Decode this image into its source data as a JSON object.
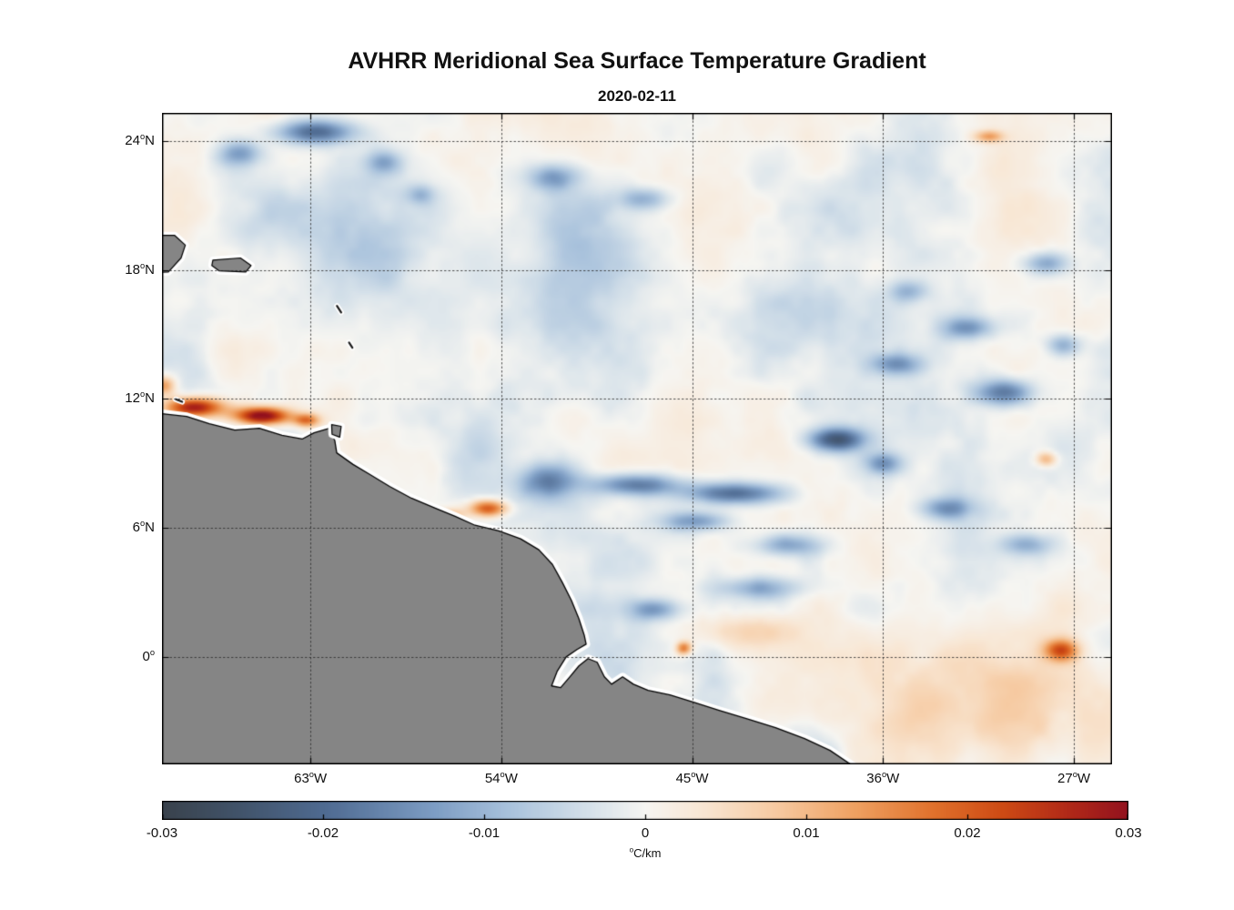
{
  "chart_data": {
    "type": "heatmap",
    "title": "AVHRR Meridional Sea Surface Temperature Gradient",
    "subtitle": "2020-02-11",
    "x_axis": {
      "lon_range": [
        -70.0,
        -25.2
      ],
      "ticks": [
        {
          "value": -63,
          "label": "63°W"
        },
        {
          "value": -54,
          "label": "54°W"
        },
        {
          "value": -45,
          "label": "45°W"
        },
        {
          "value": -36,
          "label": "36°W"
        },
        {
          "value": -27,
          "label": "27°W"
        }
      ]
    },
    "y_axis": {
      "lat_range": [
        -5.0,
        25.3
      ],
      "ticks": [
        {
          "value": 24,
          "label": "24°N"
        },
        {
          "value": 18,
          "label": "18°N"
        },
        {
          "value": 12,
          "label": "12°N"
        },
        {
          "value": 6,
          "label": "6°N"
        },
        {
          "value": 0,
          "label": "0°"
        }
      ]
    },
    "colorbar": {
      "min": -0.03,
      "max": 0.03,
      "label": "°C/km",
      "ticks": [
        {
          "value": -0.03,
          "label": "-0.03"
        },
        {
          "value": -0.02,
          "label": "-0.02"
        },
        {
          "value": -0.01,
          "label": "-0.01"
        },
        {
          "value": 0,
          "label": "0"
        },
        {
          "value": 0.01,
          "label": "0.01"
        },
        {
          "value": 0.02,
          "label": "0.02"
        },
        {
          "value": 0.03,
          "label": "0.03"
        }
      ]
    },
    "colormap": [
      [
        0.0,
        "#39424c"
      ],
      [
        0.08,
        "#41536a"
      ],
      [
        0.17,
        "#4f6b92"
      ],
      [
        0.28,
        "#7c9cc3"
      ],
      [
        0.36,
        "#a9c2dc"
      ],
      [
        0.44,
        "#d4e0e9"
      ],
      [
        0.5,
        "#f6f5f1"
      ],
      [
        0.56,
        "#f8e6d3"
      ],
      [
        0.64,
        "#f6c89e"
      ],
      [
        0.72,
        "#ee9f5f"
      ],
      [
        0.8,
        "#e0702b"
      ],
      [
        0.87,
        "#cd4a14"
      ],
      [
        0.94,
        "#b02818"
      ],
      [
        1.0,
        "#93121e"
      ]
    ],
    "grid": {
      "color": "#2e2e2e",
      "style": "dotted"
    },
    "field": {
      "seed": 7,
      "noise_amplitude": 0.0055,
      "negative_boost": 1.4,
      "octaves": [
        [
          5.0,
          1.0
        ],
        [
          2.3,
          0.55
        ],
        [
          1.1,
          0.3
        ],
        [
          0.55,
          0.15
        ]
      ],
      "features": [
        [
          -68.5,
          11.6,
          1.5,
          0.45,
          0.03
        ],
        [
          -65.3,
          11.2,
          1.3,
          0.4,
          0.034
        ],
        [
          -63.2,
          11.0,
          0.6,
          0.3,
          0.018
        ],
        [
          -69.9,
          12.6,
          0.55,
          0.45,
          0.016
        ],
        [
          -54.6,
          6.9,
          0.9,
          0.38,
          0.022
        ],
        [
          -56.4,
          6.6,
          0.7,
          0.3,
          0.01
        ],
        [
          -27.6,
          0.3,
          0.8,
          0.5,
          0.02
        ],
        [
          -45.4,
          0.4,
          0.35,
          0.3,
          0.018
        ],
        [
          -31.0,
          24.2,
          0.7,
          0.28,
          0.013
        ],
        [
          -28.3,
          9.2,
          0.5,
          0.35,
          0.013
        ],
        [
          -42.5,
          1.2,
          2.5,
          0.8,
          0.007
        ],
        [
          -30.0,
          -2.5,
          7.0,
          3.0,
          0.006
        ],
        [
          -62.8,
          24.4,
          1.8,
          0.55,
          -0.02
        ],
        [
          -66.3,
          23.4,
          1.0,
          0.6,
          -0.013
        ],
        [
          -59.5,
          23.0,
          0.8,
          0.5,
          -0.009
        ],
        [
          -51.5,
          22.3,
          1.2,
          0.6,
          -0.012
        ],
        [
          -47.3,
          21.3,
          1.2,
          0.5,
          -0.01
        ],
        [
          -51.8,
          8.2,
          1.3,
          0.8,
          -0.016
        ],
        [
          -47.6,
          8.0,
          2.0,
          0.5,
          -0.018
        ],
        [
          -43.0,
          7.6,
          2.2,
          0.5,
          -0.02
        ],
        [
          -38.2,
          10.1,
          1.3,
          0.55,
          -0.024
        ],
        [
          -36.0,
          9.0,
          0.8,
          0.5,
          -0.013
        ],
        [
          -44.8,
          6.3,
          1.5,
          0.45,
          -0.013
        ],
        [
          -40.5,
          5.2,
          1.5,
          0.5,
          -0.012
        ],
        [
          -46.8,
          2.2,
          1.2,
          0.5,
          -0.013
        ],
        [
          -41.8,
          3.2,
          1.8,
          0.5,
          -0.011
        ],
        [
          -30.3,
          12.3,
          1.3,
          0.6,
          -0.018
        ],
        [
          -32.0,
          15.3,
          1.2,
          0.5,
          -0.013
        ],
        [
          -28.3,
          18.3,
          1.0,
          0.5,
          -0.012
        ],
        [
          -35.3,
          13.6,
          1.2,
          0.5,
          -0.013
        ],
        [
          -33.0,
          6.9,
          1.2,
          0.5,
          -0.013
        ],
        [
          -29.3,
          5.2,
          1.2,
          0.5,
          -0.011
        ],
        [
          -27.5,
          14.5,
          0.8,
          0.5,
          -0.011
        ],
        [
          -34.8,
          17.0,
          0.9,
          0.5,
          -0.009
        ],
        [
          -57.8,
          21.5,
          0.7,
          0.45,
          -0.008
        ],
        [
          -55.0,
          18.5,
          9.0,
          5.0,
          -0.004
        ]
      ]
    },
    "land": {
      "fill": "#858585",
      "outline": "#000000",
      "nodata_halo": "#ffffff",
      "coast": [
        [
          -70.4,
          11.35
        ],
        [
          -70.0,
          11.31
        ],
        [
          -68.84,
          11.18
        ],
        [
          -67.77,
          10.84
        ],
        [
          -66.57,
          10.55
        ],
        [
          -65.41,
          10.63
        ],
        [
          -64.34,
          10.3
        ],
        [
          -63.39,
          10.13
        ],
        [
          -62.83,
          10.42
        ],
        [
          -62.1,
          10.63
        ],
        [
          -61.85,
          10.05
        ],
        [
          -61.76,
          9.49
        ],
        [
          -60.99,
          8.95
        ],
        [
          -60.26,
          8.52
        ],
        [
          -59.27,
          7.93
        ],
        [
          -58.24,
          7.38
        ],
        [
          -57.12,
          6.92
        ],
        [
          -56.18,
          6.54
        ],
        [
          -55.24,
          6.12
        ],
        [
          -54.12,
          5.86
        ],
        [
          -53.09,
          5.49
        ],
        [
          -52.23,
          4.98
        ],
        [
          -51.59,
          4.3
        ],
        [
          -51.12,
          3.46
        ],
        [
          -50.69,
          2.62
        ],
        [
          -50.34,
          1.77
        ],
        [
          -50.09,
          1.01
        ],
        [
          -50.0,
          0.59
        ],
        [
          -50.43,
          0.34
        ],
        [
          -50.94,
          0.0
        ],
        [
          -51.37,
          -0.68
        ],
        [
          -51.63,
          -1.35
        ],
        [
          -51.2,
          -1.43
        ],
        [
          -50.77,
          -0.93
        ],
        [
          -50.34,
          -0.42
        ],
        [
          -49.91,
          -0.08
        ],
        [
          -49.48,
          -0.25
        ],
        [
          -49.14,
          -0.93
        ],
        [
          -48.8,
          -1.27
        ],
        [
          -48.28,
          -0.93
        ],
        [
          -47.77,
          -1.27
        ],
        [
          -47.08,
          -1.56
        ],
        [
          -46.05,
          -1.77
        ],
        [
          -44.94,
          -2.11
        ],
        [
          -43.73,
          -2.49
        ],
        [
          -42.45,
          -2.87
        ],
        [
          -41.07,
          -3.29
        ],
        [
          -39.7,
          -3.8
        ],
        [
          -38.5,
          -4.35
        ],
        [
          -37.3,
          -5.15
        ],
        [
          -37.0,
          -5.5
        ]
      ],
      "closure": [
        [
          -70.6,
          -5.5
        ],
        [
          -70.6,
          11.35
        ]
      ],
      "islands": [
        [
          [
            -70.6,
            19.6
          ],
          [
            -69.4,
            19.6
          ],
          [
            -68.9,
            19.15
          ],
          [
            -69.1,
            18.55
          ],
          [
            -69.7,
            17.9
          ],
          [
            -70.6,
            17.85
          ]
        ],
        [
          [
            -67.6,
            18.45
          ],
          [
            -66.3,
            18.55
          ],
          [
            -65.8,
            18.2
          ],
          [
            -66.05,
            17.9
          ],
          [
            -67.3,
            17.95
          ],
          [
            -67.65,
            18.2
          ]
        ],
        [
          [
            -62.0,
            10.8
          ],
          [
            -61.55,
            10.72
          ],
          [
            -61.62,
            10.22
          ],
          [
            -61.98,
            10.35
          ]
        ]
      ],
      "islets": [
        [
          [
            -61.75,
            16.32
          ],
          [
            -61.55,
            16.02
          ]
        ],
        [
          [
            -61.18,
            14.62
          ],
          [
            -61.02,
            14.38
          ]
        ],
        [
          [
            -69.35,
            11.98
          ],
          [
            -69.05,
            11.86
          ]
        ]
      ]
    }
  }
}
